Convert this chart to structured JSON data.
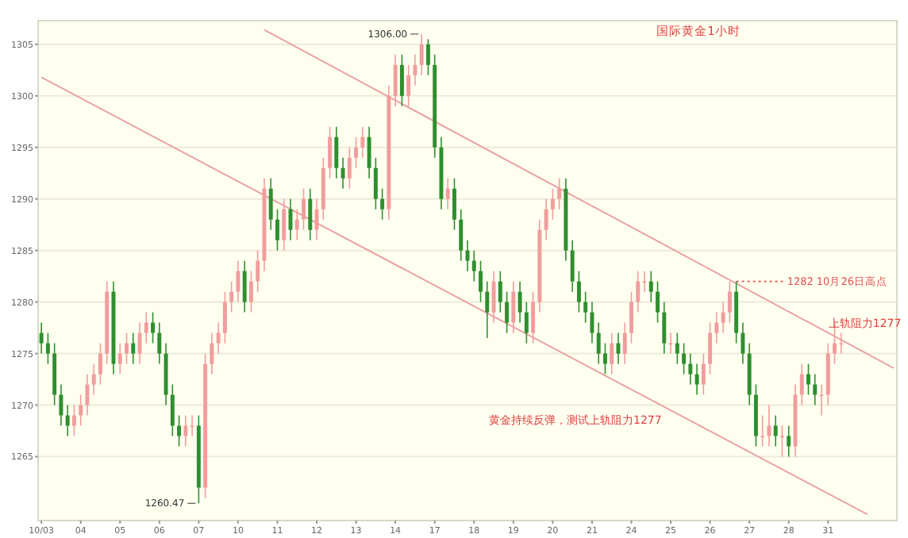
{
  "chart_data": {
    "type": "candlestick",
    "subtitle": "国际黄金1小时",
    "categories": [
      "10/03",
      null,
      null,
      null,
      null,
      null,
      "04",
      null,
      null,
      null,
      null,
      null,
      "05",
      null,
      null,
      null,
      null,
      null,
      "06",
      null,
      null,
      null,
      null,
      null,
      "07",
      null,
      null,
      null,
      null,
      null,
      "10",
      null,
      null,
      null,
      null,
      null,
      "11",
      null,
      null,
      null,
      null,
      null,
      "12",
      null,
      null,
      null,
      null,
      null,
      "13",
      null,
      null,
      null,
      null,
      null,
      "14",
      null,
      null,
      null,
      null,
      null,
      "17",
      null,
      null,
      null,
      null,
      null,
      "18",
      null,
      null,
      null,
      null,
      null,
      "19",
      null,
      null,
      null,
      null,
      null,
      "20",
      null,
      null,
      null,
      null,
      null,
      "21",
      null,
      null,
      null,
      null,
      null,
      "24",
      null,
      null,
      null,
      null,
      null,
      "25",
      null,
      null,
      null,
      null,
      null,
      "26",
      null,
      null,
      null,
      null,
      null,
      "27",
      null,
      null,
      null,
      null,
      null,
      "28",
      null,
      null,
      null,
      null,
      null,
      "31",
      null,
      null,
      null,
      null,
      null,
      null,
      null,
      null,
      null,
      null
    ],
    "ohlc": [
      [
        1277,
        1278,
        1275,
        1276
      ],
      [
        1276,
        1277,
        1274,
        1275
      ],
      [
        1275,
        1276,
        1270,
        1271
      ],
      [
        1271,
        1272,
        1268,
        1269
      ],
      [
        1269,
        1270,
        1267,
        1268
      ],
      [
        1268,
        1270,
        1267,
        1269
      ],
      [
        1269,
        1271,
        1268,
        1270
      ],
      [
        1270,
        1273,
        1269,
        1272
      ],
      [
        1272,
        1274,
        1271,
        1273
      ],
      [
        1273,
        1276,
        1272,
        1275
      ],
      [
        1275,
        1282,
        1274,
        1281
      ],
      [
        1281,
        1282,
        1273,
        1274
      ],
      [
        1274,
        1276,
        1273,
        1275
      ],
      [
        1275,
        1277,
        1274,
        1276
      ],
      [
        1276,
        1277,
        1274,
        1275
      ],
      [
        1275,
        1278,
        1274,
        1277
      ],
      [
        1277,
        1279,
        1276,
        1278
      ],
      [
        1278,
        1279,
        1276,
        1277
      ],
      [
        1277,
        1278,
        1274,
        1275
      ],
      [
        1275,
        1276,
        1270,
        1271
      ],
      [
        1271,
        1272,
        1267,
        1268
      ],
      [
        1268,
        1269,
        1266,
        1267
      ],
      [
        1267,
        1269,
        1266,
        1268
      ],
      [
        1268,
        1269,
        1267,
        1268
      ],
      [
        1268,
        1269,
        1260.47,
        1262
      ],
      [
        1262,
        1275,
        1261,
        1274
      ],
      [
        1274,
        1277,
        1273,
        1276
      ],
      [
        1276,
        1278,
        1275,
        1277
      ],
      [
        1277,
        1281,
        1276,
        1280
      ],
      [
        1280,
        1282,
        1279,
        1281
      ],
      [
        1281,
        1284,
        1280,
        1283
      ],
      [
        1283,
        1284,
        1279,
        1280
      ],
      [
        1280,
        1283,
        1279,
        1282
      ],
      [
        1282,
        1285,
        1281,
        1284
      ],
      [
        1284,
        1292,
        1283,
        1291
      ],
      [
        1291,
        1292,
        1287,
        1288
      ],
      [
        1288,
        1289,
        1285,
        1286
      ],
      [
        1286,
        1290,
        1285,
        1289
      ],
      [
        1289,
        1290,
        1286,
        1287
      ],
      [
        1287,
        1289,
        1286,
        1288
      ],
      [
        1288,
        1291,
        1287,
        1290
      ],
      [
        1290,
        1291,
        1286,
        1287
      ],
      [
        1287,
        1290,
        1286,
        1289
      ],
      [
        1289,
        1294,
        1288,
        1293
      ],
      [
        1293,
        1297,
        1292,
        1296
      ],
      [
        1296,
        1297,
        1292,
        1293
      ],
      [
        1293,
        1294,
        1291,
        1292
      ],
      [
        1292,
        1295,
        1291,
        1294
      ],
      [
        1294,
        1296,
        1293,
        1295
      ],
      [
        1295,
        1297,
        1294,
        1296
      ],
      [
        1296,
        1297,
        1292,
        1293
      ],
      [
        1293,
        1294,
        1289,
        1290
      ],
      [
        1290,
        1291,
        1288,
        1289
      ],
      [
        1289,
        1301,
        1288,
        1300
      ],
      [
        1300,
        1304,
        1299,
        1303
      ],
      [
        1303,
        1304,
        1299,
        1300
      ],
      [
        1300,
        1303,
        1299,
        1302
      ],
      [
        1302,
        1304,
        1301,
        1303
      ],
      [
        1303,
        1306,
        1302,
        1305
      ],
      [
        1305,
        1305.5,
        1302,
        1303
      ],
      [
        1303,
        1304,
        1294,
        1295
      ],
      [
        1295,
        1296,
        1289,
        1290
      ],
      [
        1290,
        1292,
        1289,
        1291
      ],
      [
        1291,
        1292,
        1287,
        1288
      ],
      [
        1288,
        1289,
        1284,
        1285
      ],
      [
        1285,
        1286,
        1283,
        1284
      ],
      [
        1284,
        1285,
        1282,
        1283
      ],
      [
        1283,
        1284,
        1280,
        1281
      ],
      [
        1281,
        1282,
        1276.5,
        1279
      ],
      [
        1279,
        1283,
        1278,
        1282
      ],
      [
        1282,
        1283,
        1279,
        1280
      ],
      [
        1280,
        1281,
        1277,
        1278
      ],
      [
        1278,
        1282,
        1277,
        1281
      ],
      [
        1281,
        1282,
        1278,
        1279
      ],
      [
        1279,
        1280,
        1276,
        1277
      ],
      [
        1277,
        1281,
        1276,
        1280
      ],
      [
        1280,
        1288,
        1279,
        1287
      ],
      [
        1287,
        1290,
        1286,
        1289
      ],
      [
        1289,
        1291,
        1288,
        1290
      ],
      [
        1290,
        1292,
        1289,
        1291
      ],
      [
        1291,
        1292,
        1284,
        1285
      ],
      [
        1285,
        1286,
        1281,
        1282
      ],
      [
        1282,
        1283,
        1279,
        1280
      ],
      [
        1280,
        1281,
        1278,
        1279
      ],
      [
        1279,
        1280,
        1276,
        1277
      ],
      [
        1277,
        1278,
        1274,
        1275
      ],
      [
        1275,
        1276,
        1273,
        1274
      ],
      [
        1274,
        1277,
        1273,
        1276
      ],
      [
        1276,
        1277,
        1274,
        1275
      ],
      [
        1275,
        1278,
        1274,
        1277
      ],
      [
        1277,
        1281,
        1276,
        1280
      ],
      [
        1280,
        1283,
        1279,
        1282
      ],
      [
        1282,
        1283,
        1281,
        1282
      ],
      [
        1282,
        1283,
        1280,
        1281
      ],
      [
        1281,
        1282,
        1278,
        1279
      ],
      [
        1279,
        1280,
        1275,
        1276
      ],
      [
        1276,
        1277,
        1275,
        1276
      ],
      [
        1276,
        1277,
        1274,
        1275
      ],
      [
        1275,
        1276,
        1273,
        1274
      ],
      [
        1274,
        1275,
        1272,
        1273
      ],
      [
        1273,
        1274,
        1271,
        1272
      ],
      [
        1272,
        1275,
        1271,
        1274
      ],
      [
        1274,
        1278,
        1273,
        1277
      ],
      [
        1277,
        1279,
        1276,
        1278
      ],
      [
        1278,
        1280,
        1277,
        1279
      ],
      [
        1279,
        1282,
        1278,
        1281
      ],
      [
        1281,
        1282,
        1276,
        1277
      ],
      [
        1277,
        1278,
        1274,
        1275
      ],
      [
        1275,
        1276,
        1270,
        1271
      ],
      [
        1271,
        1272,
        1266,
        1267
      ],
      [
        1267,
        1269,
        1266,
        1267
      ],
      [
        1267,
        1270,
        1266,
        1268
      ],
      [
        1268,
        1269,
        1266,
        1267
      ],
      [
        1267,
        1268,
        1265,
        1267
      ],
      [
        1267,
        1268,
        1265,
        1266
      ],
      [
        1266,
        1272,
        1265,
        1271
      ],
      [
        1271,
        1274,
        1270,
        1273
      ],
      [
        1273,
        1274,
        1271,
        1272
      ],
      [
        1272,
        1273,
        1270,
        1271
      ],
      [
        1271,
        1272,
        1269,
        1271
      ],
      [
        1271,
        1276,
        1270,
        1275
      ],
      [
        1275,
        1278,
        1274,
        1276
      ],
      [
        1276,
        1277,
        1275,
        1276
      ],
      null,
      null,
      null,
      null,
      null,
      null,
      null,
      null
    ],
    "colors": [
      "#2f8f2f",
      "#2f8f2f",
      "#2f8f2f",
      "#2f8f2f",
      "#2f8f2f",
      "#f19d9d",
      "#f19d9d",
      "#f19d9d",
      "#f19d9d",
      "#f19d9d",
      "#f19d9d",
      "#2f8f2f",
      "#f19d9d",
      "#f19d9d",
      "#2f8f2f",
      "#f19d9d",
      "#f19d9d",
      "#2f8f2f",
      "#2f8f2f",
      "#2f8f2f",
      "#2f8f2f",
      "#2f8f2f",
      "#f19d9d",
      "#f19d9d",
      "#2f8f2f",
      "#f19d9d",
      "#f19d9d",
      "#f19d9d",
      "#f19d9d",
      "#f19d9d",
      "#f19d9d",
      "#2f8f2f",
      "#f19d9d",
      "#f19d9d",
      "#f19d9d",
      "#2f8f2f",
      "#2f8f2f",
      "#f19d9d",
      "#2f8f2f",
      "#f19d9d",
      "#f19d9d",
      "#2f8f2f",
      "#f19d9d",
      "#f19d9d",
      "#f19d9d",
      "#2f8f2f",
      "#2f8f2f",
      "#f19d9d",
      "#f19d9d",
      "#f19d9d",
      "#2f8f2f",
      "#2f8f2f",
      "#2f8f2f",
      "#f19d9d",
      "#f19d9d",
      "#2f8f2f",
      "#f19d9d",
      "#f19d9d",
      "#f19d9d",
      "#2f8f2f",
      "#2f8f2f",
      "#2f8f2f",
      "#f19d9d",
      "#2f8f2f",
      "#2f8f2f",
      "#2f8f2f",
      "#2f8f2f",
      "#2f8f2f",
      "#2f8f2f",
      "#f19d9d",
      "#2f8f2f",
      "#2f8f2f",
      "#f19d9d",
      "#2f8f2f",
      "#2f8f2f",
      "#f19d9d",
      "#f19d9d",
      "#f19d9d",
      "#f19d9d",
      "#f19d9d",
      "#2f8f2f",
      "#2f8f2f",
      "#2f8f2f",
      "#2f8f2f",
      "#2f8f2f",
      "#2f8f2f",
      "#2f8f2f",
      "#f19d9d",
      "#2f8f2f",
      "#f19d9d",
      "#f19d9d",
      "#f19d9d",
      "#f19d9d",
      "#2f8f2f",
      "#2f8f2f",
      "#2f8f2f",
      "#f19d9d",
      "#2f8f2f",
      "#2f8f2f",
      "#2f8f2f",
      "#2f8f2f",
      "#f19d9d",
      "#f19d9d",
      "#f19d9d",
      "#f19d9d",
      "#f19d9d",
      "#2f8f2f",
      "#2f8f2f",
      "#2f8f2f",
      "#2f8f2f",
      "#f19d9d",
      "#f19d9d",
      "#2f8f2f",
      "#f19d9d",
      "#2f8f2f",
      "#f19d9d",
      "#f19d9d",
      "#2f8f2f",
      "#2f8f2f",
      "#f19d9d",
      "#f19d9d",
      "#f19d9d",
      "#f19d9d",
      null,
      null,
      null,
      null,
      null,
      null,
      null,
      null
    ],
    "series": [
      {
        "type": "line",
        "color": "#e9a3a3",
        "values": [
          1301.8,
          null,
          null,
          null,
          null,
          null,
          null,
          null,
          null,
          null,
          null,
          null,
          null,
          null,
          null,
          null,
          null,
          null,
          null,
          null,
          null,
          null,
          null,
          null,
          null,
          null,
          null,
          null,
          null,
          null,
          null,
          null,
          null,
          null,
          null,
          null,
          null,
          null,
          null,
          null,
          null,
          null,
          null,
          null,
          null,
          null,
          null,
          null,
          null,
          null,
          null,
          null,
          null,
          null,
          null,
          null,
          null,
          null,
          null,
          null,
          null,
          null,
          null,
          null,
          null,
          null,
          null,
          null,
          null,
          null,
          null,
          null,
          null,
          null,
          null,
          null,
          null,
          null,
          null,
          null,
          null,
          null,
          null,
          null,
          null,
          null,
          null,
          null,
          null,
          null,
          null,
          null,
          null,
          null,
          null,
          null,
          null,
          null,
          null,
          null,
          null,
          null,
          null,
          null,
          null,
          null,
          null,
          null,
          null,
          null,
          null,
          null,
          null,
          null,
          null,
          null,
          null,
          null,
          null,
          null,
          null,
          null,
          null,
          null,
          null,
          null,
          1259.4,
          null,
          null,
          null,
          null
        ]
      },
      {
        "type": "line",
        "color": "#e9a3a3",
        "values": [
          null,
          null,
          null,
          null,
          null,
          null,
          null,
          null,
          null,
          null,
          null,
          null,
          null,
          null,
          null,
          null,
          null,
          null,
          null,
          null,
          null,
          null,
          null,
          null,
          null,
          null,
          null,
          null,
          null,
          null,
          null,
          null,
          null,
          null,
          1306.4,
          null,
          null,
          null,
          null,
          null,
          null,
          null,
          null,
          null,
          null,
          null,
          null,
          null,
          null,
          null,
          null,
          null,
          null,
          null,
          null,
          null,
          null,
          null,
          null,
          null,
          null,
          null,
          null,
          null,
          null,
          null,
          null,
          null,
          null,
          null,
          null,
          null,
          null,
          null,
          null,
          null,
          null,
          null,
          null,
          null,
          null,
          null,
          null,
          null,
          null,
          null,
          null,
          null,
          null,
          null,
          null,
          null,
          null,
          null,
          null,
          null,
          null,
          null,
          null,
          null,
          null,
          null,
          null,
          null,
          null,
          null,
          null,
          null,
          null,
          null,
          null,
          null,
          null,
          null,
          null,
          null,
          null,
          null,
          null,
          null,
          null,
          null,
          null,
          null,
          null,
          null,
          null,
          null,
          null,
          null,
          1273.6
        ]
      }
    ],
    "ylim": [
      1258.8,
      1307.3
    ],
    "yticks": [
      1265,
      1270,
      1275,
      1280,
      1285,
      1290,
      1295,
      1300,
      1305
    ],
    "grid": "y",
    "ref_lines": [
      {
        "axis": "y",
        "value": 1282,
        "label": "1282  10月26日高点",
        "line_style": "dotted",
        "color": "#e05050"
      }
    ],
    "annotations": [
      "1306.00",
      "1260.47",
      "上轨阻力1277",
      "黄金持续反弹，测试上轨阻力1277"
    ]
  }
}
